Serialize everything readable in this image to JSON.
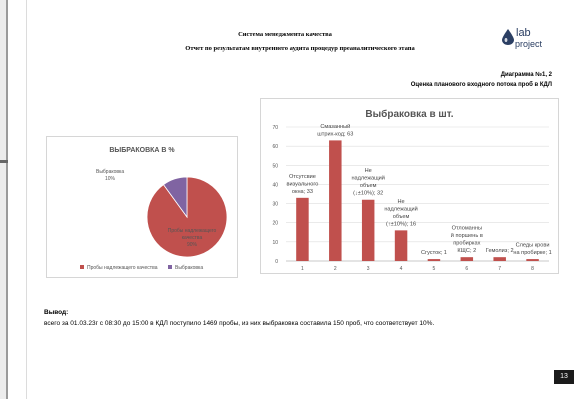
{
  "header": {
    "system_title": "Система менеджмента качества",
    "report_title": "Отчет по результатам внутреннего  аудита процедур преаналитического этапа",
    "logo_line1": "lab",
    "logo_line2": "project"
  },
  "diagram": {
    "number": "Диаграмма №1, 2",
    "subtitle": "Оценка планового входного потока проб в КДЛ"
  },
  "pie_chart": {
    "title": "ВЫБРАКОВКА В %",
    "legend": [
      "Пробы надлежащего качества",
      "Выбраковка"
    ],
    "slice_labels": [
      [
        "Пробы надлежащего",
        "качества",
        "90%"
      ],
      [
        "Выбраковка",
        "10%"
      ]
    ]
  },
  "bar_chart": {
    "title": "Выбраковка в шт.",
    "y_ticks": [
      "0",
      "10",
      "20",
      "30",
      "40",
      "50",
      "60",
      "70"
    ],
    "categories": [
      "1",
      "2",
      "3",
      "4",
      "5",
      "6",
      "7",
      "8"
    ],
    "labels": [
      [
        "Отсутсвие",
        "визуального",
        "окна; 33"
      ],
      [
        "Смазанный",
        "штрих-код; 63"
      ],
      [
        "Не",
        "надлежащий",
        "объем",
        "(↓±10%); 32"
      ],
      [
        "Не",
        "надлежащий",
        "объем",
        "(↑±10%); 16"
      ],
      [
        "Сгусток; 1"
      ],
      [
        "Отломанны",
        "й поршень в",
        "пробирках",
        "КЩС; 2"
      ],
      [
        "Гемолиз; 2"
      ],
      [
        "Следы крови",
        "на пробирке; 1"
      ]
    ]
  },
  "chart_data": [
    {
      "type": "pie",
      "title": "ВЫБРАКОВКА В %",
      "categories": [
        "Пробы надлежащего качества",
        "Выбраковка"
      ],
      "values": [
        90,
        10
      ],
      "colors": [
        "#c0504d",
        "#8064a2"
      ],
      "legend": "bottom"
    },
    {
      "type": "bar",
      "title": "Выбраковка в шт.",
      "categories": [
        "1",
        "2",
        "3",
        "4",
        "5",
        "6",
        "7",
        "8"
      ],
      "values": [
        33,
        63,
        32,
        16,
        1,
        2,
        2,
        1
      ],
      "ylim": [
        0,
        70
      ],
      "grid": true,
      "color": "#c0504d"
    }
  ],
  "conclusion": {
    "heading": "Вывод:",
    "text": "всего за 01.03.23г с 08:30 до 15:00 в КДЛ поступило 1469 пробы, из них выбраковка составила 150 проб, что соответствует 10%."
  },
  "page_number": "13"
}
